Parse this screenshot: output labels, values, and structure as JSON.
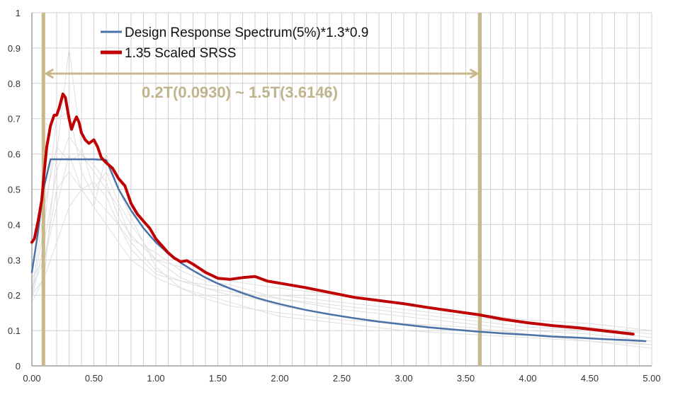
{
  "chart_data": {
    "type": "line",
    "title": "",
    "xlabel": "",
    "ylabel": "",
    "xlim": [
      0,
      5
    ],
    "ylim": [
      0,
      1
    ],
    "grid": true,
    "legend_position": "top-left",
    "x_tick_labels": [
      "0.00",
      "0.50",
      "1.00",
      "1.50",
      "2.00",
      "2.50",
      "3.00",
      "3.50",
      "4.00",
      "4.50",
      "5.00"
    ],
    "y_tick_labels": [
      "0",
      "0.1",
      "0.2",
      "0.3",
      "0.4",
      "0.5",
      "0.6",
      "0.7",
      "0.8",
      "0.9",
      "1"
    ],
    "period_range": {
      "lower": 0.093,
      "upper": 3.6146,
      "label": "0.2T(0.0930) ~ 1.5T(3.6146)"
    },
    "colors": {
      "design": "#4a72a8",
      "srss": "#c00000",
      "range": "#c8b98a",
      "annotation": "#c0b48c",
      "records": "#dedede",
      "grid": "#d0d0d0",
      "axis": "#8a8a8a"
    },
    "series": [
      {
        "name": "Design Response Spectrum(5%)*1.3*0.9",
        "x": [
          0.0,
          0.05,
          0.093,
          0.15,
          0.2,
          0.3,
          0.4,
          0.5,
          0.6,
          0.7,
          0.8,
          0.9,
          1.0,
          1.1,
          1.2,
          1.3,
          1.4,
          1.5,
          1.6,
          1.7,
          1.8,
          1.9,
          2.0,
          2.2,
          2.4,
          2.6,
          2.8,
          3.0,
          3.2,
          3.4,
          3.6,
          3.8,
          4.0,
          4.2,
          4.4,
          4.6,
          4.8,
          4.95
        ],
        "values": [
          0.265,
          0.38,
          0.5,
          0.585,
          0.585,
          0.585,
          0.585,
          0.585,
          0.583,
          0.5,
          0.44,
          0.39,
          0.35,
          0.318,
          0.292,
          0.27,
          0.25,
          0.233,
          0.219,
          0.206,
          0.194,
          0.184,
          0.175,
          0.159,
          0.146,
          0.135,
          0.125,
          0.117,
          0.109,
          0.103,
          0.097,
          0.092,
          0.088,
          0.083,
          0.08,
          0.076,
          0.073,
          0.07
        ]
      },
      {
        "name": "1.35 Scaled SRSS",
        "x": [
          0.0,
          0.02,
          0.05,
          0.08,
          0.1,
          0.12,
          0.15,
          0.18,
          0.2,
          0.22,
          0.25,
          0.27,
          0.28,
          0.3,
          0.32,
          0.34,
          0.36,
          0.38,
          0.4,
          0.43,
          0.46,
          0.5,
          0.53,
          0.56,
          0.6,
          0.65,
          0.7,
          0.75,
          0.8,
          0.85,
          0.9,
          0.95,
          1.0,
          1.05,
          1.1,
          1.15,
          1.2,
          1.25,
          1.3,
          1.4,
          1.5,
          1.6,
          1.7,
          1.8,
          1.9,
          2.0,
          2.2,
          2.4,
          2.6,
          2.8,
          3.0,
          3.2,
          3.4,
          3.6,
          3.8,
          4.0,
          4.2,
          4.4,
          4.6,
          4.8,
          4.85
        ],
        "values": [
          0.35,
          0.36,
          0.41,
          0.47,
          0.55,
          0.62,
          0.68,
          0.71,
          0.71,
          0.73,
          0.77,
          0.76,
          0.74,
          0.7,
          0.67,
          0.69,
          0.705,
          0.69,
          0.66,
          0.64,
          0.63,
          0.64,
          0.62,
          0.59,
          0.575,
          0.56,
          0.53,
          0.51,
          0.46,
          0.43,
          0.41,
          0.39,
          0.36,
          0.34,
          0.32,
          0.305,
          0.295,
          0.298,
          0.288,
          0.265,
          0.248,
          0.245,
          0.25,
          0.253,
          0.24,
          0.234,
          0.222,
          0.208,
          0.194,
          0.185,
          0.176,
          0.165,
          0.155,
          0.145,
          0.132,
          0.122,
          0.114,
          0.108,
          0.1,
          0.092,
          0.09
        ]
      }
    ],
    "background_records": [
      {
        "x": [
          0.0,
          0.1,
          0.2,
          0.3,
          0.4,
          0.5,
          0.6,
          0.7,
          0.8,
          1.0,
          1.2,
          1.4,
          1.6,
          1.8,
          2.0,
          2.5,
          3.0,
          3.5,
          4.0,
          4.5,
          5.0
        ],
        "values": [
          0.2,
          0.25,
          0.6,
          0.9,
          0.62,
          0.5,
          0.55,
          0.46,
          0.4,
          0.3,
          0.25,
          0.22,
          0.2,
          0.19,
          0.17,
          0.14,
          0.12,
          0.11,
          0.09,
          0.08,
          0.06
        ]
      },
      {
        "x": [
          0.0,
          0.1,
          0.2,
          0.3,
          0.4,
          0.5,
          0.6,
          0.7,
          0.8,
          1.0,
          1.2,
          1.4,
          1.6,
          1.8,
          2.0,
          2.5,
          3.0,
          3.5,
          4.0,
          4.5,
          5.0
        ],
        "values": [
          0.19,
          0.35,
          0.55,
          0.65,
          0.6,
          0.55,
          0.5,
          0.45,
          0.36,
          0.32,
          0.27,
          0.24,
          0.23,
          0.21,
          0.19,
          0.17,
          0.15,
          0.13,
          0.11,
          0.1,
          0.08
        ]
      },
      {
        "x": [
          0.0,
          0.1,
          0.2,
          0.3,
          0.4,
          0.5,
          0.6,
          0.7,
          0.8,
          1.0,
          1.2,
          1.4,
          1.6,
          1.8,
          2.0,
          2.5,
          3.0,
          3.5,
          4.0,
          4.5,
          5.0
        ],
        "values": [
          0.22,
          0.3,
          0.45,
          0.6,
          0.5,
          0.45,
          0.6,
          0.5,
          0.42,
          0.28,
          0.22,
          0.2,
          0.18,
          0.16,
          0.15,
          0.13,
          0.12,
          0.1,
          0.09,
          0.07,
          0.05
        ]
      },
      {
        "x": [
          0.0,
          0.1,
          0.2,
          0.3,
          0.4,
          0.5,
          0.6,
          0.7,
          0.8,
          1.0,
          1.2,
          1.4,
          1.6,
          1.8,
          2.0,
          2.5,
          3.0,
          3.5,
          4.0,
          4.5,
          5.0
        ],
        "values": [
          0.2,
          0.4,
          0.7,
          0.72,
          0.55,
          0.48,
          0.44,
          0.4,
          0.35,
          0.27,
          0.24,
          0.23,
          0.22,
          0.2,
          0.2,
          0.18,
          0.16,
          0.14,
          0.12,
          0.11,
          0.09
        ]
      },
      {
        "x": [
          0.0,
          0.1,
          0.2,
          0.3,
          0.4,
          0.5,
          0.6,
          0.7,
          0.8,
          1.0,
          1.2,
          1.4,
          1.6,
          1.8,
          2.0,
          2.5,
          3.0,
          3.5,
          4.0,
          4.5,
          5.0
        ],
        "values": [
          0.25,
          0.3,
          0.5,
          0.55,
          0.5,
          0.45,
          0.4,
          0.35,
          0.3,
          0.25,
          0.22,
          0.19,
          0.17,
          0.16,
          0.14,
          0.12,
          0.1,
          0.09,
          0.08,
          0.07,
          0.06
        ]
      },
      {
        "x": [
          0.0,
          0.1,
          0.2,
          0.3,
          0.4,
          0.5,
          0.6,
          0.7,
          0.8,
          1.0,
          1.2,
          1.4,
          1.6,
          1.8,
          2.0,
          2.5,
          3.0,
          3.5,
          4.0,
          4.5,
          5.0
        ],
        "values": [
          0.18,
          0.25,
          0.35,
          0.45,
          0.5,
          0.52,
          0.48,
          0.4,
          0.33,
          0.26,
          0.24,
          0.22,
          0.21,
          0.2,
          0.19,
          0.16,
          0.14,
          0.12,
          0.1,
          0.09,
          0.07
        ]
      },
      {
        "x": [
          0.0,
          0.1,
          0.2,
          0.3,
          0.4,
          0.5,
          0.6,
          0.7,
          0.8,
          1.0,
          1.2,
          1.4,
          1.6,
          1.8,
          2.0,
          2.5,
          3.0,
          3.5,
          4.0,
          4.5,
          5.0
        ],
        "values": [
          0.21,
          0.45,
          0.62,
          0.58,
          0.6,
          0.57,
          0.52,
          0.42,
          0.37,
          0.3,
          0.28,
          0.26,
          0.24,
          0.23,
          0.22,
          0.2,
          0.18,
          0.15,
          0.13,
          0.12,
          0.1
        ]
      }
    ]
  }
}
